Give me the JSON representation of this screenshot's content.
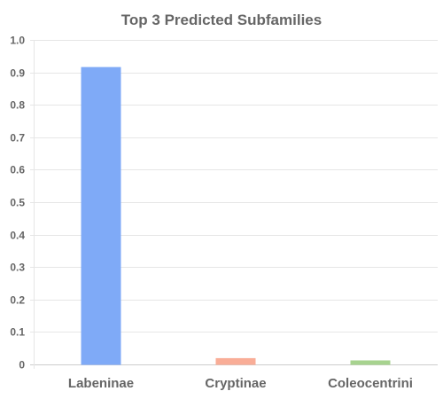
{
  "chart_data": {
    "type": "bar",
    "title": "Top 3 Predicted Subfamilies",
    "xlabel": "",
    "ylabel": "",
    "categories": [
      "Labeninae",
      "Cryptinae",
      "Coleocentrini"
    ],
    "values": [
      0.915,
      0.018,
      0.011
    ],
    "bar_colors": [
      "#7faaf7",
      "#f9ad97",
      "#a7d38f"
    ],
    "ylim": [
      0,
      1.0
    ],
    "y_ticks": [
      "0",
      "0.1",
      "0.2",
      "0.3",
      "0.4",
      "0.5",
      "0.6",
      "0.7",
      "0.8",
      "0.9",
      "1.0"
    ],
    "grid": true,
    "legend": "none"
  }
}
